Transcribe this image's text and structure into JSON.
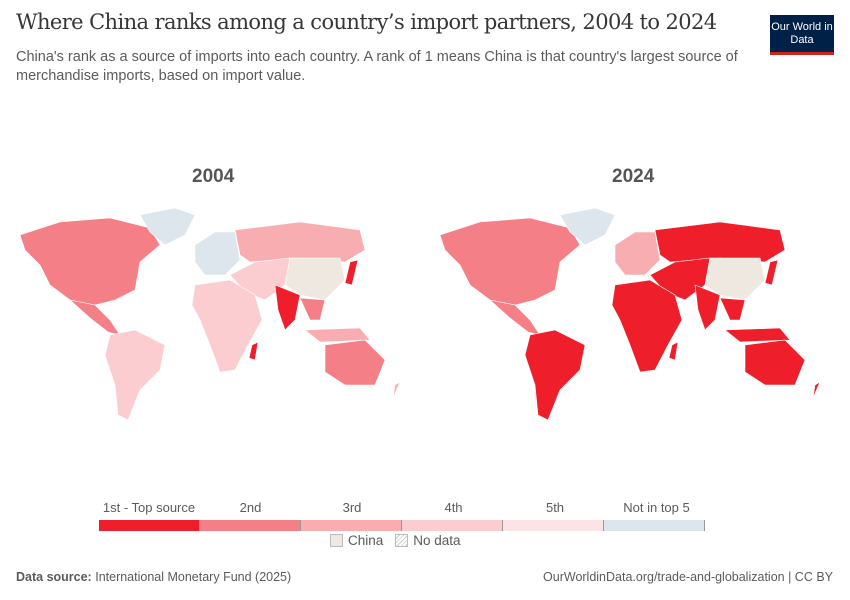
{
  "header": {
    "title": "Where China ranks among a country’s import partners, 2004 to 2024",
    "subtitle": "China's rank as a source of imports into each country. A rank of 1 means China is that country's largest source of merchandise imports, based on import value.",
    "logo": "Our World in Data"
  },
  "maps": [
    {
      "year": "2004"
    },
    {
      "year": "2024"
    }
  ],
  "regions": [
    {
      "id": "north-america",
      "r2004": "2nd",
      "r2024": "2nd"
    },
    {
      "id": "greenland",
      "r2004": "Not in top 5",
      "r2024": "Not in top 5"
    },
    {
      "id": "central-america",
      "r2004": "2nd",
      "r2024": "2nd"
    },
    {
      "id": "south-america",
      "r2004": "4th",
      "r2024": "1st - Top source"
    },
    {
      "id": "europe",
      "r2004": "Not in top 5",
      "r2024": "3rd"
    },
    {
      "id": "russia",
      "r2004": "3rd",
      "r2024": "1st - Top source"
    },
    {
      "id": "middle-east-central-asia",
      "r2004": "4th",
      "r2024": "1st - Top source"
    },
    {
      "id": "africa",
      "r2004": "4th",
      "r2024": "1st - Top source"
    },
    {
      "id": "madagascar",
      "r2004": "1st - Top source",
      "r2024": "1st - Top source"
    },
    {
      "id": "china",
      "r2004": "China",
      "r2024": "China"
    },
    {
      "id": "india",
      "r2004": "1st - Top source",
      "r2024": "1st - Top source"
    },
    {
      "id": "southeast-asia",
      "r2004": "2nd",
      "r2024": "1st - Top source"
    },
    {
      "id": "indonesia",
      "r2004": "3rd",
      "r2024": "1st - Top source"
    },
    {
      "id": "japan",
      "r2004": "1st - Top source",
      "r2024": "1st - Top source"
    },
    {
      "id": "australia",
      "r2004": "2nd",
      "r2024": "1st - Top source"
    },
    {
      "id": "new-zealand",
      "r2004": "3rd",
      "r2024": "1st - Top source"
    }
  ],
  "legend": {
    "categories": [
      {
        "label": "1st - Top source",
        "color": "#ee1f2b"
      },
      {
        "label": "2nd",
        "color": "#f47f86"
      },
      {
        "label": "3rd",
        "color": "#f8adb1"
      },
      {
        "label": "4th",
        "color": "#fbcdd0"
      },
      {
        "label": "5th",
        "color": "#fce3e5"
      },
      {
        "label": "Not in top 5",
        "color": "#dde6ed"
      }
    ],
    "china": {
      "label": "China",
      "color": "#efe8e0"
    },
    "no_data": {
      "label": "No data"
    }
  },
  "footer": {
    "source_label": "Data source:",
    "source": "International Monetary Fund (2025)",
    "url": "OurWorldinData.org/trade-and-globalization | CC BY"
  }
}
